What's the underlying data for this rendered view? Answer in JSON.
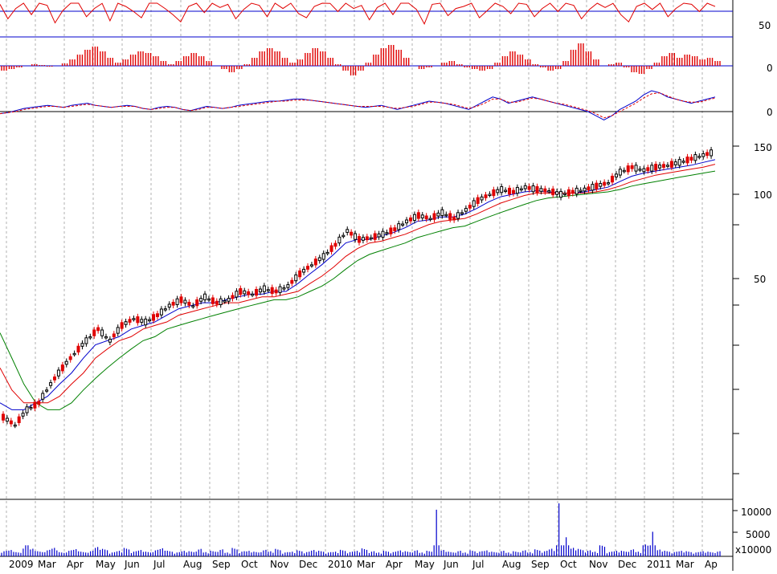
{
  "chart_data": [
    {
      "type": "line",
      "panel": "oscillator-top",
      "title": "",
      "y_tick_labels": [
        "50"
      ],
      "series": [
        {
          "role": "oscillator",
          "color": "#e00000",
          "values": [
            62,
            48,
            58,
            66,
            52,
            70,
            61,
            44,
            56,
            67,
            71,
            50,
            58,
            63,
            46,
            72,
            60,
            55,
            49,
            68,
            64,
            58,
            52,
            45,
            60,
            71,
            54,
            66,
            59,
            62,
            48,
            57,
            69,
            61,
            50,
            64,
            58,
            67,
            53,
            49,
            60,
            72,
            63,
            55,
            66,
            58,
            61,
            47,
            59,
            68,
            52,
            64,
            70,
            57,
            43,
            62,
            66,
            51,
            58,
            60,
            65,
            49,
            56,
            71,
            60,
            53,
            67,
            62,
            50,
            58,
            64,
            55,
            70,
            61,
            48,
            57,
            66,
            59,
            63,
            52,
            45,
            60,
            68,
            57,
            64,
            50,
            58,
            71,
            62,
            55,
            66,
            60
          ]
        }
      ],
      "reference_lines": [
        60,
        35
      ],
      "color_lines": "#0000cc"
    },
    {
      "type": "bar",
      "panel": "histogram",
      "y_tick_labels": [
        "0"
      ],
      "series": [
        {
          "role": "histogram",
          "color": "#e00000",
          "values": [
            -6,
            -4,
            -2,
            0,
            2,
            1,
            -1,
            0,
            3,
            8,
            14,
            20,
            24,
            18,
            10,
            4,
            8,
            14,
            18,
            16,
            12,
            6,
            2,
            6,
            12,
            16,
            12,
            6,
            0,
            -4,
            -8,
            -4,
            2,
            10,
            18,
            22,
            18,
            10,
            4,
            8,
            16,
            22,
            18,
            10,
            2,
            -6,
            -12,
            -6,
            4,
            14,
            22,
            26,
            20,
            10,
            0,
            -4,
            -2,
            0,
            4,
            6,
            2,
            -2,
            -4,
            -6,
            -4,
            4,
            12,
            18,
            14,
            8,
            2,
            -2,
            -6,
            -4,
            6,
            20,
            28,
            18,
            8,
            0,
            2,
            4,
            -2,
            -8,
            -10,
            -4,
            4,
            12,
            16,
            10,
            14,
            12,
            8,
            10,
            6
          ]
        }
      ]
    },
    {
      "type": "line",
      "panel": "oscillator-bottom",
      "y_tick_labels": [
        "0"
      ],
      "series": [
        {
          "role": "line-a",
          "color": "#0000cc",
          "values": [
            -2,
            -1,
            1,
            3,
            4,
            5,
            6,
            5,
            4,
            6,
            7,
            8,
            6,
            5,
            4,
            5,
            6,
            5,
            3,
            2,
            4,
            5,
            4,
            2,
            1,
            3,
            5,
            4,
            3,
            4,
            6,
            7,
            8,
            9,
            10,
            10,
            11,
            12,
            12,
            11,
            10,
            9,
            8,
            7,
            6,
            5,
            4,
            5,
            6,
            4,
            2,
            4,
            6,
            8,
            10,
            9,
            8,
            6,
            4,
            2,
            6,
            10,
            14,
            12,
            8,
            10,
            12,
            14,
            12,
            10,
            8,
            6,
            4,
            2,
            0,
            -4,
            -8,
            -4,
            2,
            6,
            10,
            16,
            20,
            18,
            14,
            12,
            10,
            8,
            10,
            12,
            14
          ]
        },
        {
          "role": "line-b",
          "color": "#e00000",
          "values": [
            -2,
            -1,
            0,
            2,
            3,
            4,
            5,
            5,
            4,
            5,
            6,
            7,
            6,
            5,
            4,
            5,
            5,
            5,
            3,
            2,
            3,
            4,
            4,
            2,
            1,
            2,
            4,
            4,
            3,
            4,
            5,
            6,
            7,
            8,
            9,
            10,
            10,
            11,
            11,
            11,
            10,
            9,
            8,
            7,
            6,
            5,
            5,
            5,
            5,
            4,
            3,
            4,
            5,
            7,
            9,
            9,
            8,
            7,
            5,
            3,
            5,
            8,
            12,
            12,
            9,
            9,
            11,
            13,
            12,
            10,
            8,
            7,
            5,
            3,
            1,
            -2,
            -6,
            -4,
            0,
            4,
            8,
            13,
            17,
            18,
            15,
            12,
            10,
            9,
            9,
            11,
            13
          ]
        }
      ]
    },
    {
      "type": "line",
      "panel": "price",
      "scale": "log",
      "y_tick_labels": [
        "150",
        "100",
        "50"
      ],
      "x_tick_labels": [
        "2009",
        "Mar",
        "Apr",
        "May",
        "Jun",
        "Jul",
        "Aug",
        "Sep",
        "Oct",
        "Nov",
        "Dec",
        "2010",
        "Mar",
        "Apr",
        "May",
        "Jun",
        "Jul",
        "Aug",
        "Sep",
        "Oct",
        "Nov",
        "Dec",
        "2011",
        "Mar",
        "Ap"
      ],
      "grid": true,
      "x": [
        0,
        2,
        4,
        6,
        8,
        10,
        12,
        14,
        16,
        18,
        20,
        22,
        24,
        26,
        28,
        30,
        32,
        34,
        36,
        38,
        40,
        42,
        44,
        46,
        48,
        50,
        52,
        54,
        56,
        58,
        60,
        62,
        64,
        66,
        68,
        70,
        72,
        74,
        76,
        78,
        80,
        82,
        84,
        86,
        88,
        90,
        92,
        94,
        96,
        98,
        100,
        102,
        104,
        106,
        108,
        110,
        112,
        114,
        116,
        118,
        120
      ],
      "series": [
        {
          "role": "price-close",
          "color": "#000000",
          "values": [
            16,
            15,
            17,
            18,
            21,
            24,
            27,
            30,
            33,
            30,
            34,
            36,
            35,
            37,
            40,
            42,
            40,
            43,
            41,
            42,
            45,
            44,
            46,
            45,
            47,
            52,
            56,
            60,
            66,
            74,
            69,
            70,
            72,
            75,
            80,
            84,
            82,
            86,
            82,
            88,
            95,
            100,
            104,
            102,
            106,
            104,
            103,
            100,
            102,
            104,
            107,
            110,
            120,
            125,
            122,
            125,
            127,
            130,
            134,
            138,
            142
          ]
        },
        {
          "role": "ma-short",
          "color": "#0000cc",
          "values": [
            18,
            17,
            17,
            18,
            19,
            21,
            23,
            26,
            29,
            30,
            31,
            33,
            34,
            35,
            37,
            39,
            40,
            41,
            41,
            42,
            43,
            44,
            44,
            45,
            45,
            48,
            52,
            56,
            61,
            67,
            69,
            69,
            71,
            73,
            76,
            80,
            81,
            83,
            83,
            85,
            89,
            94,
            98,
            100,
            102,
            103,
            102,
            101,
            101,
            102,
            104,
            106,
            111,
            116,
            119,
            121,
            123,
            125,
            127,
            130,
            133
          ]
        },
        {
          "role": "ma-mid",
          "color": "#e00000",
          "values": [
            24,
            20,
            18,
            18,
            18,
            19,
            21,
            23,
            26,
            28,
            30,
            31,
            33,
            34,
            35,
            37,
            38,
            39,
            40,
            41,
            41,
            42,
            43,
            43,
            44,
            45,
            48,
            51,
            55,
            60,
            64,
            67,
            68,
            70,
            72,
            75,
            78,
            80,
            81,
            82,
            85,
            89,
            93,
            96,
            99,
            101,
            101,
            101,
            101,
            101,
            102,
            104,
            107,
            111,
            114,
            117,
            119,
            121,
            123,
            125,
            128
          ]
        },
        {
          "role": "ma-long",
          "color": "#008000",
          "values": [
            32,
            26,
            21,
            18,
            17,
            17,
            18,
            20,
            22,
            24,
            26,
            28,
            30,
            31,
            33,
            34,
            35,
            36,
            37,
            38,
            39,
            40,
            41,
            42,
            42,
            43,
            45,
            47,
            50,
            54,
            58,
            61,
            63,
            65,
            67,
            70,
            72,
            74,
            76,
            77,
            80,
            83,
            86,
            89,
            92,
            95,
            97,
            98,
            99,
            100,
            101,
            102,
            104,
            107,
            109,
            111,
            113,
            115,
            117,
            119,
            121
          ]
        }
      ]
    },
    {
      "type": "bar",
      "panel": "volume",
      "y_tick_labels": [
        "10000",
        "5000",
        "x10000"
      ],
      "color": "#0000cc",
      "values": [
        1200,
        1500,
        900,
        2600,
        1800,
        1100,
        1400,
        2000,
        900,
        1300,
        1700,
        1000,
        1200,
        2200,
        1600,
        900,
        1300,
        1800,
        1100,
        1500,
        1000,
        1400,
        1900,
        1200,
        900,
        1300,
        1100,
        1600,
        1000,
        1200,
        1500,
        900,
        1800,
        1100,
        1300,
        1000,
        1400,
        1200,
        1600,
        900,
        1100,
        1300,
        1000,
        1500,
        1200,
        900,
        1100,
        1400,
        1000,
        1300,
        1700,
        1100,
        900,
        1200,
        1000,
        1400,
        1100,
        1300,
        900,
        1200,
        11000,
        1500,
        1000,
        1200,
        900,
        1300,
        1100,
        1400,
        1000,
        1200,
        900,
        1100,
        1300,
        1000,
        1500,
        1200,
        1800,
        12500,
        4500,
        2000,
        1600,
        1300,
        1100,
        2500,
        1000,
        1300,
        1200,
        1500,
        1100,
        2800,
        5800,
        1600,
        1200,
        1000,
        1300,
        1100,
        900,
        1200,
        1000,
        1100
      ]
    }
  ]
}
